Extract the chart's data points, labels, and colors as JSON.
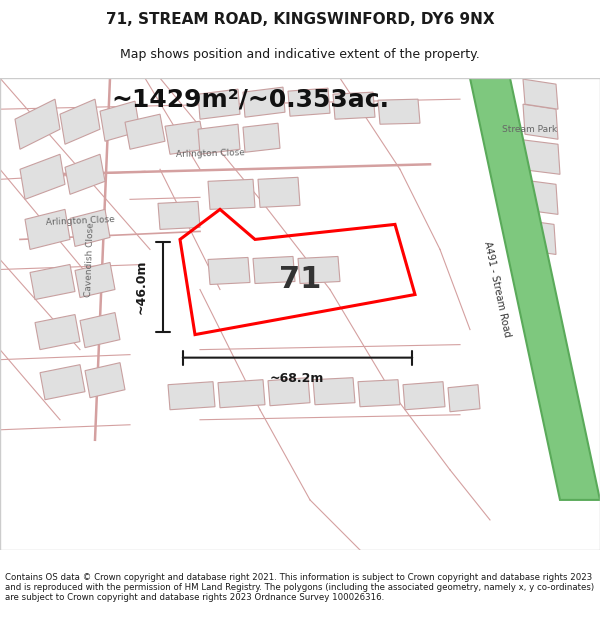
{
  "title": "71, STREAM ROAD, KINGSWINFORD, DY6 9NX",
  "subtitle": "Map shows position and indicative extent of the property.",
  "area_text": "~1429m²/~0.353ac.",
  "number_label": "71",
  "dim_horiz": "~68.2m",
  "dim_vert": "~46.0m",
  "footer": "Contains OS data © Crown copyright and database right 2021. This information is subject to Crown copyright and database rights 2023 and is reproduced with the permission of HM Land Registry. The polygons (including the associated geometry, namely x, y co-ordinates) are subject to Crown copyright and database rights 2023 Ordnance Survey 100026316.",
  "bg_color": "#f5f5f5",
  "map_bg": "#f0eeeb",
  "road_green": "#7ec87e",
  "road_green_border": "#5aaa5a",
  "block_fill": "#e8e8e8",
  "block_stroke": "#d0a0a0",
  "property_stroke": "#ff0000",
  "property_fill": "none",
  "dim_color": "#1a1a1a",
  "title_color": "#1a1a1a",
  "footer_color": "#1a1a1a",
  "street_label_color": "#555555"
}
